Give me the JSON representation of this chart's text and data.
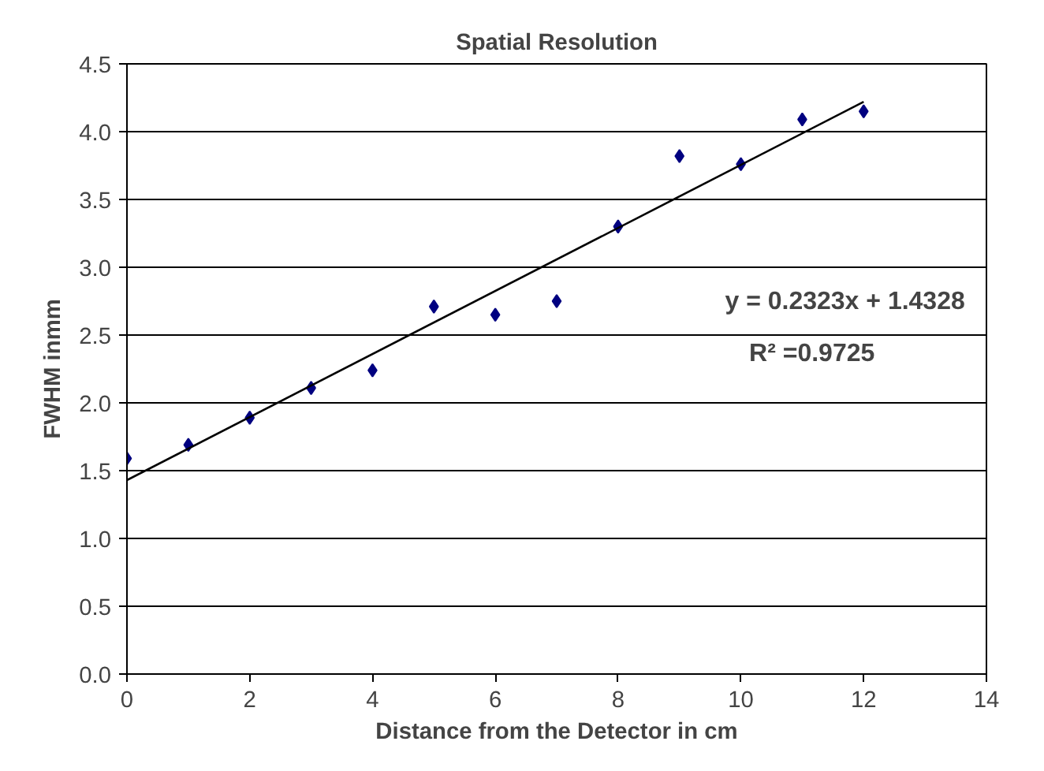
{
  "chart_data": {
    "type": "scatter",
    "title": "Spatial Resolution",
    "xlabel": "Distance from the Detector in cm",
    "ylabel": "FWHM inmm",
    "x": [
      0,
      1,
      2,
      3,
      4,
      5,
      6,
      7,
      8,
      9,
      10,
      11,
      12
    ],
    "series": [
      {
        "marker": "diamond",
        "color": "#000080",
        "values": [
          1.59,
          1.69,
          1.89,
          2.11,
          2.24,
          2.71,
          2.65,
          2.75,
          3.3,
          3.82,
          3.76,
          4.09,
          4.15
        ]
      },
      {
        "type": "line",
        "line_style": "solid",
        "color": "#000000",
        "x": [
          0,
          12
        ],
        "values": [
          1.43,
          4.22
        ]
      }
    ],
    "xlim": [
      0,
      14
    ],
    "xticks": [
      0,
      2,
      4,
      6,
      8,
      10,
      12,
      14
    ],
    "ylim": [
      0,
      4.5
    ],
    "yticks": [
      {
        "value": 0,
        "label": "0.0"
      },
      {
        "value": 0.5,
        "label": "0.5"
      },
      {
        "value": 1,
        "label": "1.0"
      },
      {
        "value": 1.5,
        "label": "1.5"
      },
      {
        "value": 2,
        "label": "2.0"
      },
      {
        "value": 2.5,
        "label": "2.5"
      },
      {
        "value": 3,
        "label": "3.0"
      },
      {
        "value": 3.5,
        "label": "3.5"
      },
      {
        "value": 4,
        "label": "4.0"
      },
      {
        "value": 4.5,
        "label": "4.5"
      }
    ],
    "grid": "y",
    "annotations": [
      "y = 0.2323x + 1.4328",
      "R² =0.9725"
    ]
  }
}
